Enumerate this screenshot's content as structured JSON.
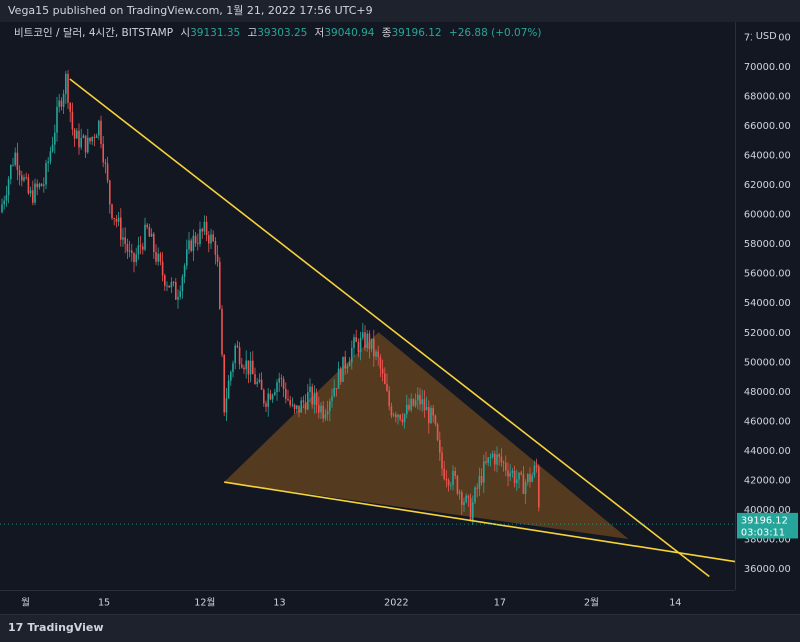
{
  "header": {
    "published": "Vega15 published on TradingView.com, 1월 21, 2022 17:56 UTC+9"
  },
  "legend": {
    "symbol": "비트코인 / 달러, 4시간, BITSTAMP",
    "open_label": "시",
    "open": "39131.35",
    "high_label": "고",
    "high": "39303.25",
    "low_label": "저",
    "low": "39040.94",
    "close_label": "종",
    "close": "39196.12",
    "change": "+26.88 (+0.07%)"
  },
  "price_tag": {
    "price": "39196.12",
    "countdown": "03:03:11"
  },
  "footer": {
    "brand": "TradingView",
    "logo_glyph": "𝟭𝟳"
  },
  "colors": {
    "up": "#26a69a",
    "down": "#ef5350",
    "trendline": "#f7d33a",
    "triangle_fill": "#8a5a1e",
    "price": "#26a69a"
  },
  "chart_data": {
    "type": "candlestick",
    "currency": "USD",
    "ylim": [
      34800,
      72700
    ],
    "y_ticks": [
      36000,
      38000,
      40000,
      42000,
      44000,
      46000,
      48000,
      50000,
      52000,
      54000,
      56000,
      58000,
      60000,
      62000,
      64000,
      66000,
      68000,
      70000,
      72000
    ],
    "y_tick_labels": [
      "36000.00",
      "38000.00",
      "40000.00",
      "42000.00",
      "44000.00",
      "46000.00",
      "48000.00",
      "50000.00",
      "52000.00",
      "54000.00",
      "56000.00",
      "58000.00",
      "60000.00",
      "62000.00",
      "64000.00",
      "66000.00",
      "68000.00",
      "70000.00",
      "72000.00"
    ],
    "x_ticks": [
      {
        "label": "월",
        "pos": 0.0
      },
      {
        "label": "15",
        "pos": 0.126
      },
      {
        "label": "12월",
        "pos": 0.269
      },
      {
        "label": "13",
        "pos": 0.375
      },
      {
        "label": "2022",
        "pos": 0.541
      },
      {
        "label": "17",
        "pos": 0.688
      },
      {
        "label": "2월",
        "pos": 0.818
      },
      {
        "label": "14",
        "pos": 0.937
      }
    ],
    "price_path": [
      [
        0.0,
        60000
      ],
      [
        0.02,
        64000
      ],
      [
        0.04,
        61000
      ],
      [
        0.06,
        62000
      ],
      [
        0.08,
        67000
      ],
      [
        0.09,
        69000
      ],
      [
        0.1,
        65000
      ],
      [
        0.12,
        64500
      ],
      [
        0.135,
        66000
      ],
      [
        0.15,
        60500
      ],
      [
        0.17,
        58000
      ],
      [
        0.18,
        56500
      ],
      [
        0.2,
        58800
      ],
      [
        0.22,
        56000
      ],
      [
        0.24,
        54500
      ],
      [
        0.26,
        58000
      ],
      [
        0.28,
        58800
      ],
      [
        0.295,
        57500
      ],
      [
        0.3,
        52000
      ],
      [
        0.305,
        47000
      ],
      [
        0.32,
        51000
      ],
      [
        0.34,
        49500
      ],
      [
        0.36,
        47500
      ],
      [
        0.38,
        49000
      ],
      [
        0.4,
        46500
      ],
      [
        0.42,
        47800
      ],
      [
        0.44,
        46800
      ],
      [
        0.46,
        49000
      ],
      [
        0.48,
        51000
      ],
      [
        0.5,
        51500
      ],
      [
        0.515,
        50000
      ],
      [
        0.53,
        47000
      ],
      [
        0.55,
        46500
      ],
      [
        0.57,
        47500
      ],
      [
        0.59,
        46000
      ],
      [
        0.6,
        43000
      ],
      [
        0.62,
        42000
      ],
      [
        0.64,
        40000
      ],
      [
        0.655,
        42500
      ],
      [
        0.67,
        43800
      ],
      [
        0.69,
        43000
      ],
      [
        0.71,
        41800
      ],
      [
        0.725,
        42500
      ],
      [
        0.73,
        43000
      ],
      [
        0.735,
        39200
      ]
    ],
    "trendlines": [
      {
        "from": [
          0.095,
          68900
        ],
        "to": [
          0.965,
          35700
        ]
      },
      {
        "from": [
          0.305,
          42000
        ],
        "to": [
          1.0,
          36700
        ]
      }
    ],
    "triangle": [
      [
        0.305,
        42000
      ],
      [
        0.515,
        52000
      ],
      [
        0.855,
        38200
      ]
    ],
    "last_price": 39196.12
  }
}
